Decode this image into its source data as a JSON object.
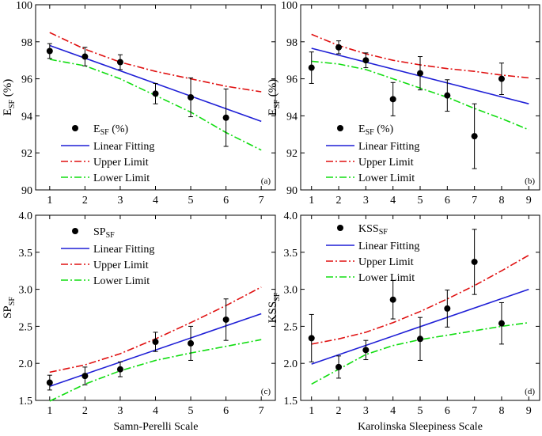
{
  "figure": {
    "xlabel_left": "Samn-Perelli Scale",
    "xlabel_right": "Karolinska Sleepiness Scale"
  },
  "chart_data": [
    {
      "id": "a",
      "panel_label": "(a)",
      "type": "scatter",
      "ylabel_main": "E",
      "ylabel_sub": "SF",
      "ylabel_tail": " (%)",
      "xlim": [
        0.6,
        7.4
      ],
      "ylim": [
        90,
        100
      ],
      "xticks": [
        1,
        2,
        3,
        4,
        5,
        6,
        7
      ],
      "yticks": [
        90,
        92,
        94,
        96,
        98,
        100
      ],
      "points": {
        "x": [
          1,
          2,
          3,
          4,
          5,
          6
        ],
        "y": [
          97.5,
          97.2,
          96.9,
          95.2,
          95.0,
          93.9
        ],
        "err": [
          0.4,
          0.5,
          0.4,
          0.55,
          1.05,
          1.55
        ]
      },
      "fit": {
        "x": [
          1,
          7
        ],
        "y": [
          97.8,
          93.7
        ]
      },
      "upper": {
        "x": [
          1,
          2,
          3,
          4,
          5,
          6,
          7
        ],
        "y": [
          98.5,
          97.6,
          96.9,
          96.4,
          96.0,
          95.6,
          95.3
        ]
      },
      "lower": {
        "x": [
          1,
          2,
          3,
          4,
          5,
          6,
          7
        ],
        "y": [
          97.05,
          96.7,
          96.0,
          95.1,
          94.2,
          93.1,
          92.15
        ]
      },
      "legend": {
        "points_main": "E",
        "points_sub": "SF",
        "points_tail": " (%)",
        "fit": "Linear Fitting",
        "upper": "Upper Limit",
        "lower": "Lower Limit"
      }
    },
    {
      "id": "b",
      "panel_label": "(b)",
      "type": "scatter",
      "ylabel_main": "E",
      "ylabel_sub": "SF",
      "ylabel_tail": " (%)",
      "xlim": [
        0.6,
        9.4
      ],
      "ylim": [
        90,
        100
      ],
      "xticks": [
        1,
        2,
        3,
        4,
        5,
        6,
        7,
        8,
        9
      ],
      "yticks": [
        90,
        92,
        94,
        96,
        98,
        100
      ],
      "points": {
        "x": [
          1,
          2,
          3,
          4,
          5,
          6,
          7,
          8
        ],
        "y": [
          96.6,
          97.7,
          97.0,
          94.9,
          96.3,
          95.1,
          92.9,
          96.0
        ],
        "err": [
          0.85,
          0.35,
          0.4,
          0.9,
          0.9,
          0.85,
          1.75,
          0.85
        ]
      },
      "fit": {
        "x": [
          1,
          9
        ],
        "y": [
          97.65,
          94.65
        ]
      },
      "upper": {
        "x": [
          1,
          2,
          3,
          4,
          5,
          6,
          7,
          8,
          9
        ],
        "y": [
          98.4,
          97.8,
          97.35,
          97.0,
          96.75,
          96.55,
          96.4,
          96.2,
          96.05
        ]
      },
      "lower": {
        "x": [
          1,
          2,
          3,
          4,
          5,
          6,
          7,
          8,
          9
        ],
        "y": [
          96.95,
          96.8,
          96.5,
          96.0,
          95.5,
          95.0,
          94.4,
          93.85,
          93.25
        ]
      },
      "legend": {
        "points_main": "E",
        "points_sub": "SF",
        "points_tail": " (%)",
        "fit": "Linear Fitting",
        "upper": "Upper Limit",
        "lower": "Lower Limit"
      }
    },
    {
      "id": "c",
      "panel_label": "(c)",
      "type": "scatter",
      "ylabel_main": "SP",
      "ylabel_sub": "SF",
      "ylabel_tail": "",
      "xlim": [
        0.6,
        7.4
      ],
      "ylim": [
        1.5,
        4.0
      ],
      "xticks": [
        1,
        2,
        3,
        4,
        5,
        6,
        7
      ],
      "yticks": [
        1.5,
        2.0,
        2.5,
        3.0,
        3.5,
        4.0
      ],
      "points": {
        "x": [
          1,
          2,
          3,
          4,
          5,
          6
        ],
        "y": [
          1.74,
          1.83,
          1.92,
          2.29,
          2.27,
          2.59
        ],
        "err": [
          0.1,
          0.12,
          0.1,
          0.13,
          0.23,
          0.28
        ]
      },
      "fit": {
        "x": [
          1,
          7
        ],
        "y": [
          1.69,
          2.67
        ]
      },
      "upper": {
        "x": [
          1,
          2,
          3,
          4,
          5,
          6,
          7
        ],
        "y": [
          1.88,
          1.98,
          2.13,
          2.33,
          2.55,
          2.78,
          3.03
        ]
      },
      "lower": {
        "x": [
          1,
          2,
          3,
          4,
          5,
          6,
          7
        ],
        "y": [
          1.49,
          1.72,
          1.9,
          2.04,
          2.14,
          2.23,
          2.32
        ]
      },
      "legend": {
        "points_main": "SP",
        "points_sub": "SF",
        "points_tail": "",
        "fit": "Linear Fitting",
        "upper": "Upper Limit",
        "lower": "Lower Limit"
      }
    },
    {
      "id": "d",
      "panel_label": "(d)",
      "type": "scatter",
      "ylabel_main": "KSS",
      "ylabel_sub": "SF",
      "ylabel_tail": "",
      "xlim": [
        0.6,
        9.4
      ],
      "ylim": [
        1.5,
        4.0
      ],
      "xticks": [
        1,
        2,
        3,
        4,
        5,
        6,
        7,
        8,
        9
      ],
      "yticks": [
        1.5,
        2.0,
        2.5,
        3.0,
        3.5,
        4.0
      ],
      "points": {
        "x": [
          1,
          2,
          3,
          4,
          5,
          6,
          7,
          8
        ],
        "y": [
          2.34,
          1.95,
          2.18,
          2.86,
          2.33,
          2.74,
          3.37,
          2.54
        ],
        "err": [
          0.32,
          0.15,
          0.13,
          0.26,
          0.29,
          0.25,
          0.44,
          0.28
        ]
      },
      "fit": {
        "x": [
          1,
          9
        ],
        "y": [
          1.99,
          3.0
        ]
      },
      "upper": {
        "x": [
          1,
          2,
          3,
          4,
          5,
          6,
          7,
          8,
          9
        ],
        "y": [
          2.26,
          2.33,
          2.42,
          2.55,
          2.7,
          2.87,
          3.05,
          3.25,
          3.46
        ]
      },
      "lower": {
        "x": [
          1,
          2,
          3,
          4,
          5,
          6,
          7,
          8,
          9
        ],
        "y": [
          1.72,
          1.92,
          2.12,
          2.24,
          2.32,
          2.38,
          2.44,
          2.5,
          2.55
        ]
      },
      "legend": {
        "points_main": "KSS",
        "points_sub": "SF",
        "points_tail": "",
        "fit": "Linear Fitting",
        "upper": "Upper Limit",
        "lower": "Lower Limit"
      }
    }
  ],
  "colors": {
    "fit": "#1f1fd6",
    "upper": "#e01010",
    "lower": "#10dd10",
    "points": "#000000"
  }
}
